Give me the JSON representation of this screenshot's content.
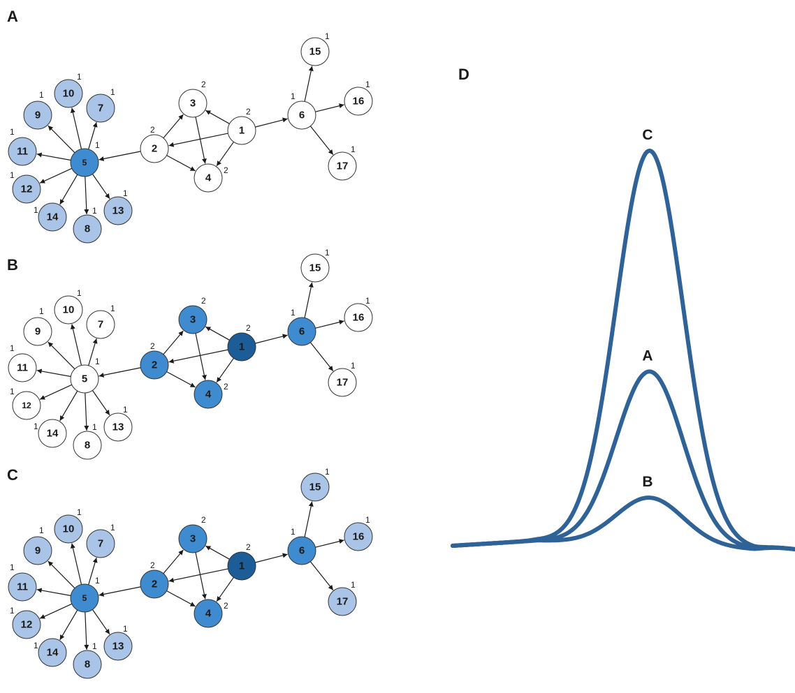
{
  "colors": {
    "white": "#ffffff",
    "light": "#a9c4e6",
    "medium": "#3f8bd0",
    "dark": "#1c5d98",
    "curve": "#2f6296",
    "stroke": "#333333"
  },
  "panel_d_letter": "D",
  "graph": {
    "nodes": [
      {
        "id": "1",
        "sup": "2"
      },
      {
        "id": "2",
        "sup": "2"
      },
      {
        "id": "3",
        "sup": "2"
      },
      {
        "id": "4",
        "sup": "2"
      },
      {
        "id": "5",
        "sup": "1"
      },
      {
        "id": "6",
        "sup": "1"
      },
      {
        "id": "7",
        "sup": "1"
      },
      {
        "id": "8",
        "sup": "1"
      },
      {
        "id": "9",
        "sup": "1"
      },
      {
        "id": "10",
        "sup": "1"
      },
      {
        "id": "11",
        "sup": "1"
      },
      {
        "id": "12",
        "sup": "1"
      },
      {
        "id": "13",
        "sup": "1"
      },
      {
        "id": "14",
        "sup": "1"
      },
      {
        "id": "15",
        "sup": "1"
      },
      {
        "id": "16",
        "sup": "1"
      },
      {
        "id": "17",
        "sup": "1"
      }
    ],
    "edges": [
      [
        "1",
        "2"
      ],
      [
        "1",
        "3"
      ],
      [
        "1",
        "4"
      ],
      [
        "1",
        "6"
      ],
      [
        "2",
        "3"
      ],
      [
        "2",
        "4"
      ],
      [
        "2",
        "5"
      ],
      [
        "3",
        "4"
      ],
      [
        "5",
        "7"
      ],
      [
        "5",
        "8"
      ],
      [
        "5",
        "9"
      ],
      [
        "5",
        "10"
      ],
      [
        "5",
        "11"
      ],
      [
        "5",
        "12"
      ],
      [
        "5",
        "13"
      ],
      [
        "5",
        "14"
      ],
      [
        "6",
        "15"
      ],
      [
        "6",
        "16"
      ],
      [
        "6",
        "17"
      ]
    ]
  },
  "panels": [
    {
      "letter": "A",
      "fills": {
        "1": "white",
        "2": "white",
        "3": "white",
        "4": "white",
        "5": "medium",
        "6": "white",
        "7": "light",
        "8": "light",
        "9": "light",
        "10": "light",
        "11": "light",
        "12": "light",
        "13": "light",
        "14": "light",
        "15": "white",
        "16": "white",
        "17": "white"
      }
    },
    {
      "letter": "B",
      "fills": {
        "1": "dark",
        "2": "medium",
        "3": "medium",
        "4": "medium",
        "5": "white",
        "6": "medium",
        "7": "white",
        "8": "white",
        "9": "white",
        "10": "white",
        "11": "white",
        "12": "white",
        "13": "white",
        "14": "white",
        "15": "white",
        "16": "white",
        "17": "white"
      }
    },
    {
      "letter": "C",
      "fills": {
        "1": "dark",
        "2": "medium",
        "3": "medium",
        "4": "medium",
        "5": "medium",
        "6": "medium",
        "7": "light",
        "8": "light",
        "9": "light",
        "10": "light",
        "11": "light",
        "12": "light",
        "13": "light",
        "14": "light",
        "15": "light",
        "16": "light",
        "17": "light"
      }
    }
  ],
  "curves": [
    {
      "label": "C",
      "peak": 1.0
    },
    {
      "label": "A",
      "peak": 0.44
    },
    {
      "label": "B",
      "peak": 0.12
    }
  ]
}
